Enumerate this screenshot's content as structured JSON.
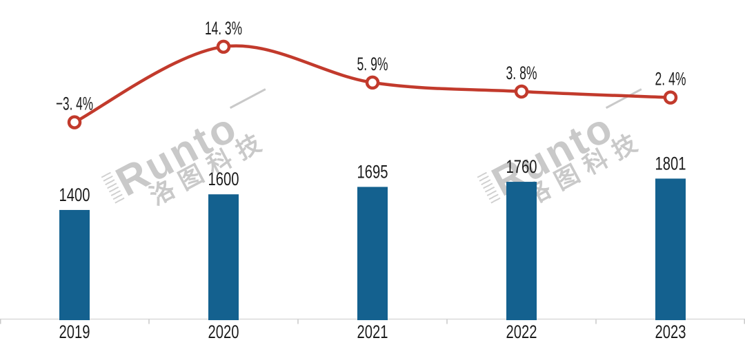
{
  "watermark": {
    "brand": "Runto",
    "cjk": "洛图科技"
  },
  "colors": {
    "bar": "#14618F",
    "line": "#C23A2C",
    "marker_fill": "#FFFFFF",
    "axis_line": "#D9D9D9",
    "tick": "#C8C8C8",
    "label_text": "#1B1B1B",
    "watermark": "#C9C9C9",
    "background": "#FFFFFF"
  },
  "chart_data": {
    "type": "combo",
    "title": "",
    "xlabel": "",
    "ylabel": "",
    "legend": false,
    "grid": false,
    "value_axes_hidden": true,
    "categories": [
      "2019",
      "2020",
      "2021",
      "2022",
      "2023"
    ],
    "series": [
      {
        "name": "annual-volume",
        "type": "bar",
        "values": [
          1400,
          1600,
          1695,
          1760,
          1801
        ],
        "labels": [
          "1400",
          "1600",
          "1695",
          "1760",
          "1801"
        ]
      },
      {
        "name": "yoy-growth-rate",
        "type": "line",
        "values": [
          -3.4,
          14.3,
          5.9,
          3.8,
          2.4
        ],
        "labels": [
          "−3. 4%",
          "14. 3%",
          "5. 9%",
          "3. 8%",
          "2. 4%"
        ]
      }
    ]
  }
}
